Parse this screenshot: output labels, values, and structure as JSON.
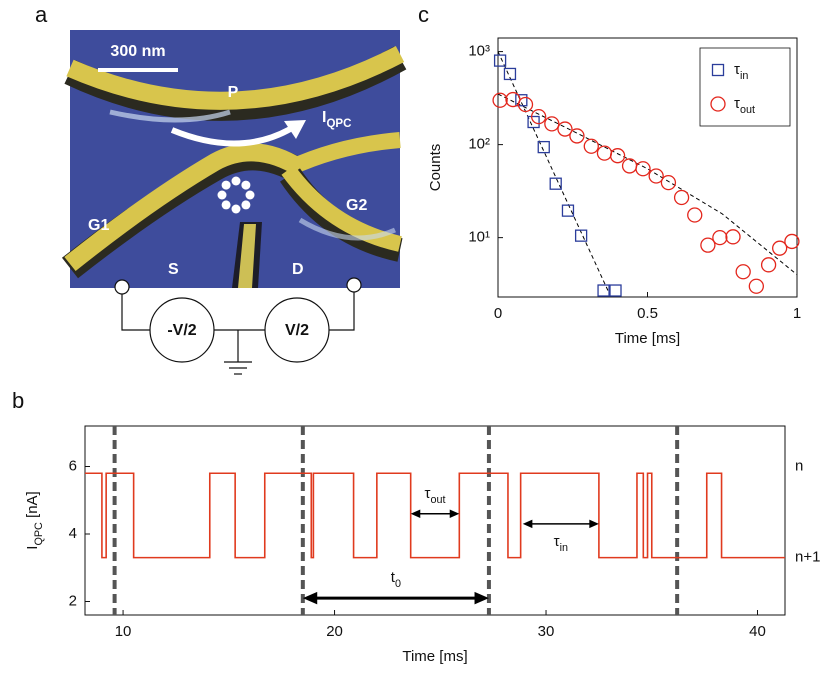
{
  "panel_labels": {
    "a": "a",
    "b": "b",
    "c": "c"
  },
  "device": {
    "scale_bar": "300 nm",
    "labels": [
      "P",
      "G1",
      "G2",
      "S",
      "D"
    ],
    "current": "IQPC",
    "sources": [
      "-V/2",
      "V/2"
    ]
  },
  "chart_data": [
    {
      "type": "scatter",
      "xlabel": "Time [ms]",
      "ylabel": "Counts",
      "xlim": [
        0,
        1
      ],
      "xticks": [
        0,
        0.5,
        1
      ],
      "ylim": [
        2.3,
        1400
      ],
      "yscale": "log",
      "yticks": [
        {
          "value": 10,
          "label": "10¹"
        },
        {
          "value": 100,
          "label": "10²"
        },
        {
          "value": 1000,
          "label": "10³"
        }
      ],
      "legend": "upper right",
      "series": [
        {
          "name": "τin",
          "color": "#2b3d9b",
          "marker": "square",
          "x": [
            0.007,
            0.04,
            0.078,
            0.119,
            0.153,
            0.193,
            0.234,
            0.278,
            0.353,
            0.393
          ],
          "values": [
            800,
            575,
            300,
            175,
            94,
            38,
            19.5,
            10.5,
            2.7,
            2.7
          ]
        },
        {
          "name": "τout",
          "color": "#e3261c",
          "marker": "circle",
          "x": [
            0.007,
            0.05,
            0.092,
            0.136,
            0.18,
            0.224,
            0.264,
            0.312,
            0.356,
            0.4,
            0.44,
            0.485,
            0.529,
            0.57,
            0.614,
            0.658,
            0.702,
            0.742,
            0.786,
            0.82,
            0.864,
            0.905,
            0.942,
            0.983
          ],
          "values": [
            300,
            305,
            270,
            200,
            167,
            147,
            124,
            96,
            81,
            76,
            59,
            55,
            46,
            39,
            27,
            17.5,
            8.3,
            10,
            10.2,
            4.3,
            3.0,
            5.1,
            7.7,
            9.1
          ]
        }
      ],
      "fits": [
        {
          "color": "#000000",
          "x": [
            0,
            0.37
          ],
          "values": [
            1000,
            2.6
          ]
        },
        {
          "color": "#000000",
          "x": [
            0,
            0.25,
            0.5,
            0.75,
            1
          ],
          "values": [
            350,
            140,
            55,
            18,
            4
          ]
        }
      ]
    },
    {
      "type": "line",
      "xlabel": "Time [ms]",
      "ylabel": "IQPC [nA]",
      "xlim": [
        8.2,
        41.3
      ],
      "xticks": [
        10,
        20,
        30,
        40
      ],
      "ylim": [
        1.6,
        7.2
      ],
      "yticks": [
        2,
        4,
        6
      ],
      "series": [
        {
          "color": "#e03a1e",
          "x": [
            8.2,
            9.0,
            9.0,
            9.2,
            9.2,
            10.5,
            10.5,
            14.1,
            14.1,
            15.3,
            15.3,
            16.7,
            16.7,
            18.9,
            18.9,
            19.0,
            19.0,
            20.9,
            20.9,
            22.0,
            22.0,
            23.6,
            23.6,
            25.9,
            25.9,
            28.2,
            28.2,
            28.8,
            28.8,
            32.5,
            32.5,
            34.3,
            34.3,
            34.6,
            34.6,
            34.8,
            34.8,
            35.0,
            35.0,
            37.6,
            37.6,
            38.3,
            38.3,
            41.3
          ],
          "values": [
            5.8,
            5.8,
            3.3,
            3.3,
            5.8,
            5.8,
            3.3,
            3.3,
            5.8,
            5.8,
            3.3,
            3.3,
            5.8,
            5.8,
            3.3,
            3.3,
            5.8,
            5.8,
            3.3,
            3.3,
            5.8,
            5.8,
            3.3,
            3.3,
            5.8,
            5.8,
            3.3,
            3.3,
            5.8,
            5.8,
            3.3,
            3.3,
            5.8,
            5.8,
            3.3,
            3.3,
            5.8,
            5.8,
            3.3,
            3.3,
            5.8,
            5.8,
            3.3,
            3.3
          ]
        }
      ],
      "period_marks": [
        9.6,
        18.5,
        27.3,
        36.2
      ],
      "annotations": [
        {
          "text": "τout",
          "x": [
            23.6,
            25.9
          ],
          "y": 4.6
        },
        {
          "text": "τin",
          "x": [
            28.9,
            32.5
          ],
          "y": 4.3
        },
        {
          "text": "t0",
          "x": [
            18.5,
            27.3
          ],
          "y": 2.1
        }
      ],
      "state_labels": [
        {
          "text": "n",
          "y": 6
        },
        {
          "text": "n+1",
          "y": 3.3
        }
      ]
    }
  ]
}
